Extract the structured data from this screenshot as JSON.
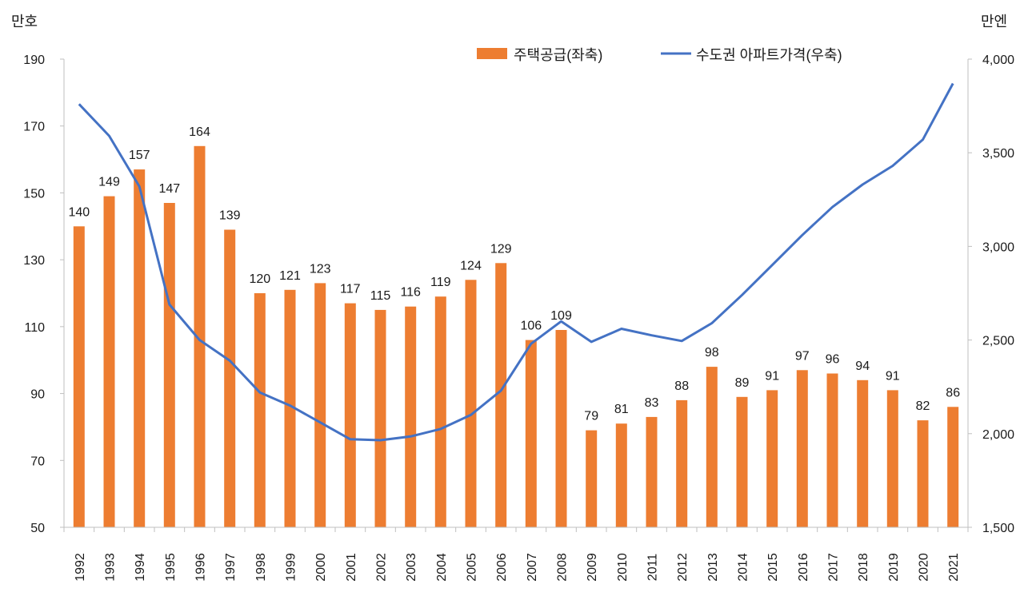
{
  "chart_data": {
    "type": "bar+line",
    "title": "",
    "categories": [
      "1992",
      "1993",
      "1994",
      "1995",
      "1996",
      "1997",
      "1998",
      "1999",
      "2000",
      "2001",
      "2002",
      "2003",
      "2004",
      "2005",
      "2006",
      "2007",
      "2008",
      "2009",
      "2010",
      "2011",
      "2012",
      "2013",
      "2014",
      "2015",
      "2016",
      "2017",
      "2018",
      "2019",
      "2020",
      "2021"
    ],
    "series": [
      {
        "name": "주택공급(좌축)",
        "type": "bar",
        "axis": "left",
        "color": "#ED7D31",
        "values": [
          140,
          149,
          157,
          147,
          164,
          139,
          120,
          121,
          123,
          117,
          115,
          116,
          119,
          124,
          129,
          106,
          109,
          79,
          81,
          83,
          88,
          98,
          89,
          91,
          97,
          96,
          94,
          91,
          82,
          86
        ],
        "labels": [
          "140",
          "149",
          "157",
          "147",
          "164",
          "139",
          "120",
          "121",
          "123",
          "117",
          "115",
          "116",
          "119",
          "124",
          "129",
          "106",
          "109",
          "79",
          "81",
          "83",
          "88",
          "98",
          "89",
          "91",
          "97",
          "96",
          "94",
          "91",
          "82",
          "86"
        ]
      },
      {
        "name": "수도권 아파트가격(우축)",
        "type": "line",
        "axis": "right",
        "color": "#4472C4",
        "values": [
          3760,
          3590,
          3320,
          2690,
          2500,
          2390,
          2220,
          2150,
          2060,
          1970,
          1965,
          1985,
          2025,
          2100,
          2230,
          2480,
          2600,
          2490,
          2560,
          2525,
          2495,
          2590,
          2740,
          2900,
          3060,
          3210,
          3330,
          3430,
          3570,
          3870
        ]
      }
    ],
    "y_left": {
      "unit": "만호",
      "min": 50,
      "max": 190,
      "ticks": [
        "50",
        "70",
        "90",
        "110",
        "130",
        "150",
        "170",
        "190"
      ]
    },
    "y_right": {
      "unit": "만엔",
      "min": 1500,
      "max": 4000,
      "ticks": [
        "1,500",
        "2,000",
        "2,500",
        "3,000",
        "3,500",
        "4,000"
      ]
    },
    "grid": false,
    "legend_position": "top-right"
  }
}
